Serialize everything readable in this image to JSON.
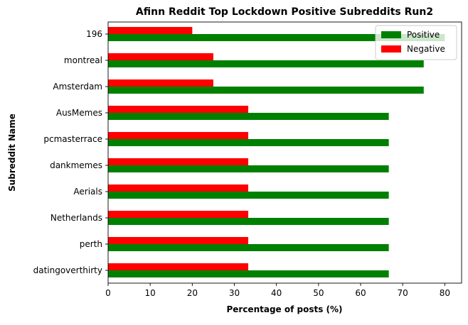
{
  "chart_data": {
    "type": "bar",
    "orientation": "horizontal",
    "title": "Afinn Reddit Top Lockdown Positive Subreddits Run2",
    "xlabel": "Percentage of posts (%)",
    "ylabel": "Subreddit Name",
    "xlim": [
      0,
      84
    ],
    "xticks": [
      0,
      10,
      20,
      30,
      40,
      50,
      60,
      70,
      80
    ],
    "grid": false,
    "legend_position": "top-right",
    "categories": [
      "196",
      "montreal",
      "Amsterdam",
      "AusMemes",
      "pcmasterrace",
      "dankmemes",
      "Aerials",
      "Netherlands",
      "perth",
      "datingoverthirty"
    ],
    "series": [
      {
        "name": "Positive",
        "color": "#008000",
        "values": [
          80,
          75,
          75,
          66.7,
          66.7,
          66.7,
          66.7,
          66.7,
          66.7,
          66.7
        ]
      },
      {
        "name": "Negative",
        "color": "#ff0000",
        "values": [
          20,
          25,
          25,
          33.3,
          33.3,
          33.3,
          33.3,
          33.3,
          33.3,
          33.3
        ]
      }
    ]
  }
}
